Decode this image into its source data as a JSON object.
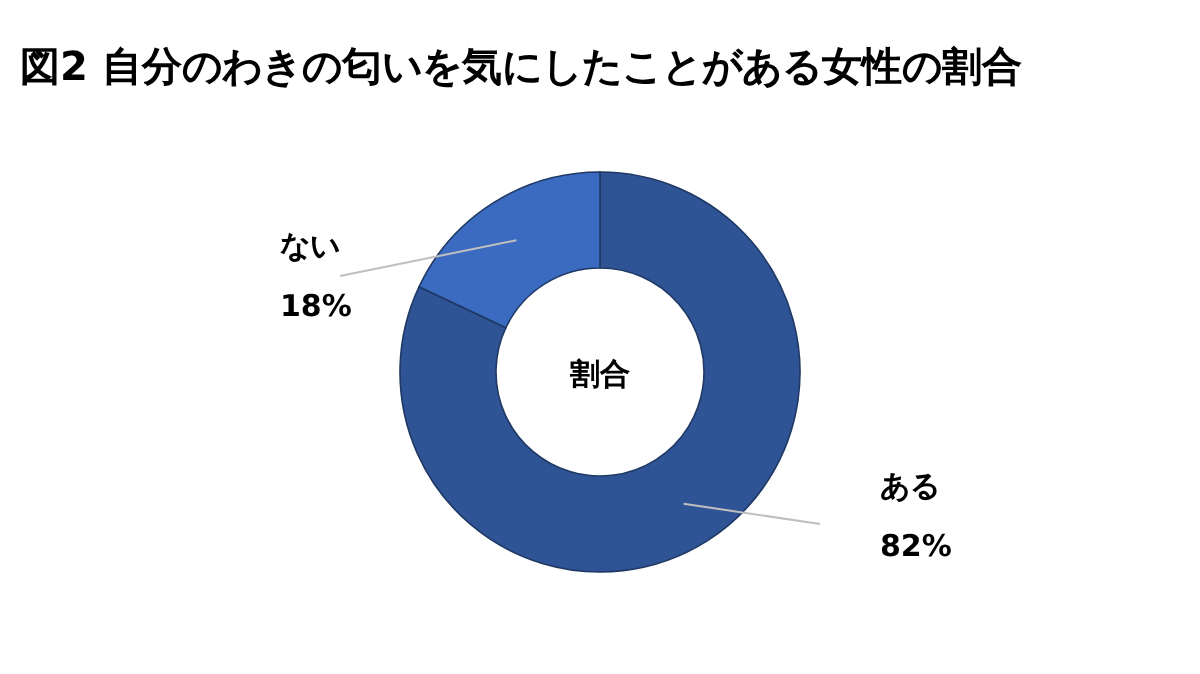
{
  "chart_data": {
    "type": "donut",
    "title": "図2 自分のわきの匂いを気にしたことがある女性の割合",
    "annotations": [
      "割合"
    ],
    "categories": [
      "ある",
      "ない"
    ],
    "values": [
      82,
      18
    ],
    "value_labels": [
      "82%",
      "18%"
    ],
    "colors": [
      "#2f5496",
      "#3a6bc0"
    ]
  }
}
